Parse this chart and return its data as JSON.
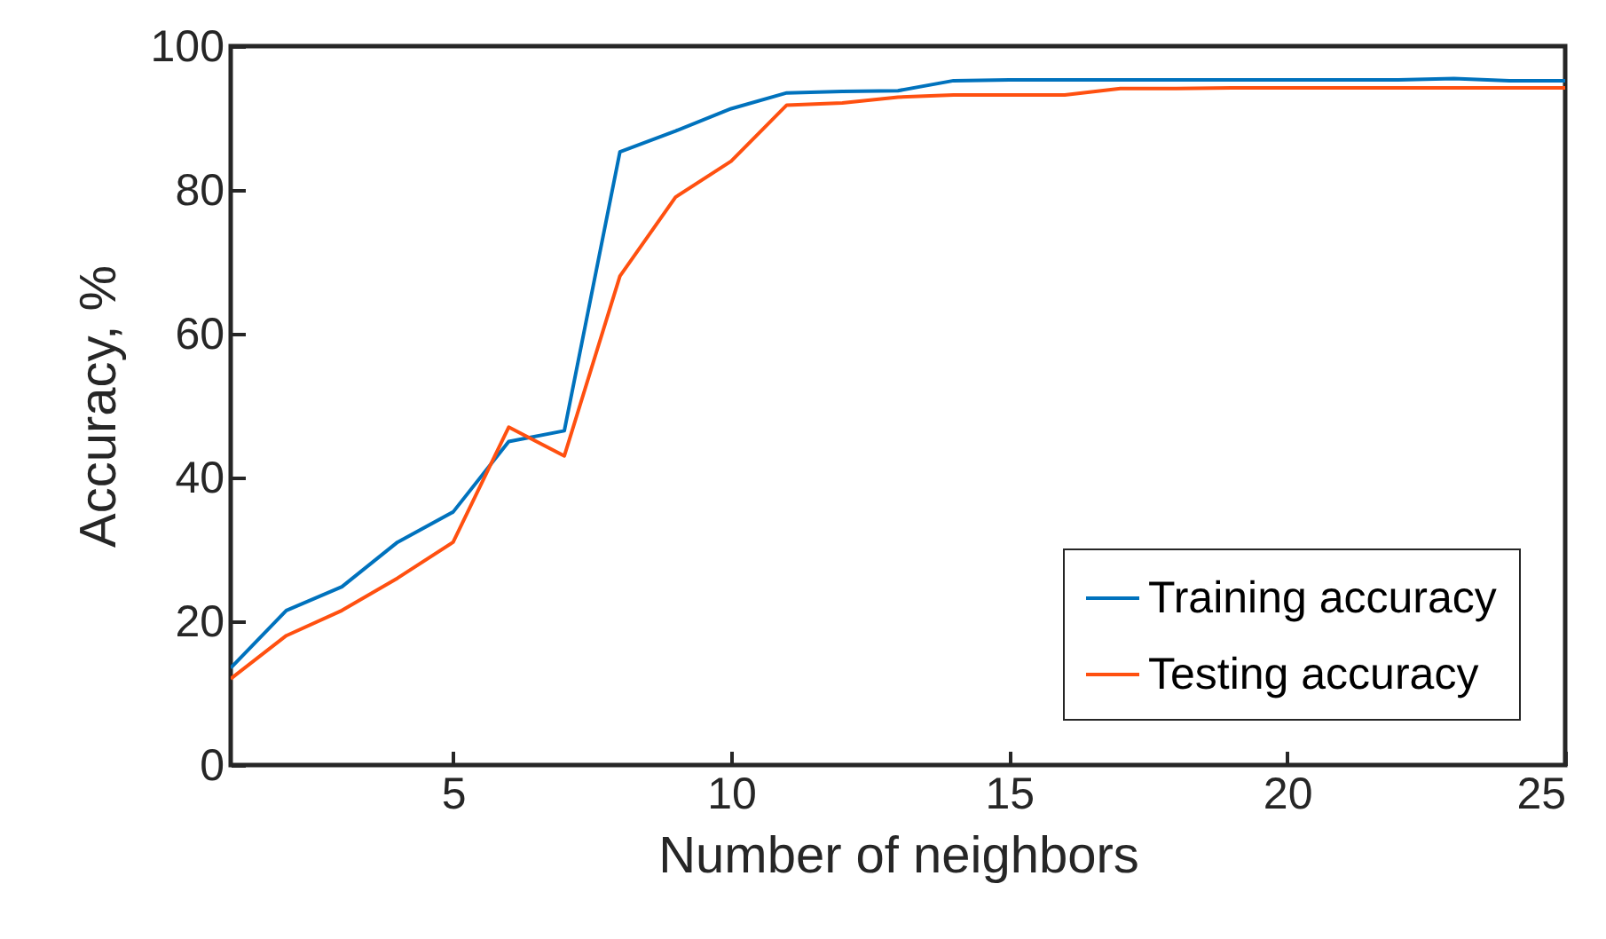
{
  "chart_data": {
    "type": "line",
    "xlabel": "Number of neighbors",
    "ylabel": "Accuracy, %",
    "x": [
      1,
      2,
      3,
      4,
      5,
      6,
      7,
      8,
      9,
      10,
      11,
      12,
      13,
      14,
      15,
      16,
      17,
      18,
      19,
      20,
      21,
      22,
      23,
      24,
      25
    ],
    "series": [
      {
        "name": "Training accuracy",
        "color": "#0072bd",
        "values": [
          13.5,
          21.5,
          24.8,
          31,
          35.2,
          45,
          46.5,
          85.3,
          88.2,
          91.3,
          93.5,
          93.7,
          93.8,
          95.2,
          95.3,
          95.3,
          95.3,
          95.3,
          95.3,
          95.3,
          95.3,
          95.3,
          95.5,
          95.2,
          95.2
        ]
      },
      {
        "name": "Testing accuracy",
        "color": "#ff5010",
        "values": [
          12,
          18,
          21.5,
          26,
          31,
          47,
          43,
          68,
          79,
          84,
          91.8,
          92.1,
          92.9,
          93.2,
          93.2,
          93.2,
          94.1,
          94.1,
          94.2,
          94.2,
          94.2,
          94.2,
          94.2,
          94.2,
          94.2
        ]
      }
    ],
    "xlim": [
      1,
      25
    ],
    "xticks": [
      5,
      10,
      15,
      20,
      25
    ],
    "ylim": [
      0,
      100
    ],
    "yticks": [
      0,
      20,
      40,
      60,
      80,
      100
    ],
    "grid": false,
    "legend": "bottom right",
    "marker": "none",
    "line_style": "solid"
  }
}
